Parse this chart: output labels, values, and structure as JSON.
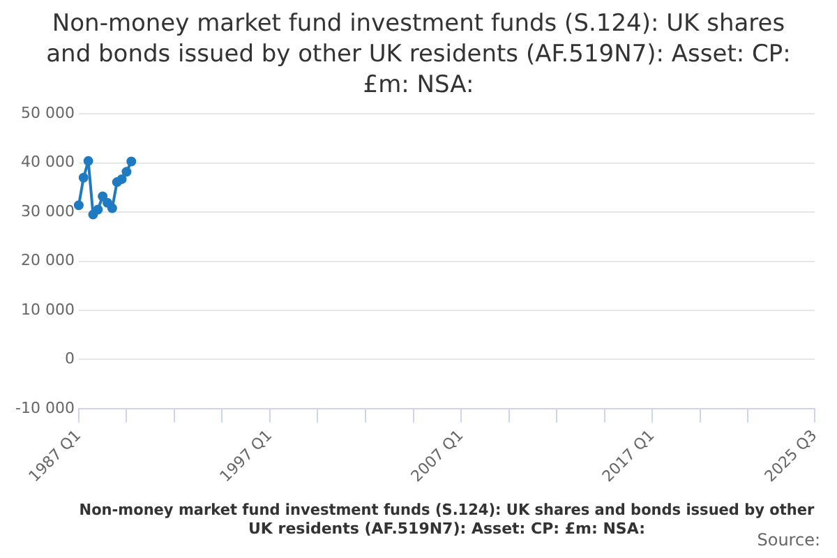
{
  "chart_data": {
    "type": "line",
    "title": "Non-money market fund investment funds (S.124): UK shares and bonds issued by other UK residents (AF.519N7): Asset: CP: £m: NSA:",
    "xlabel": "Non-money market fund investment funds (S.124): UK shares and bonds issued by other UK residents (AF.519N7): Asset: CP: £m: NSA:",
    "annotations": [
      "Source:"
    ],
    "categories": [
      "1987 Q1",
      null,
      null,
      null,
      null,
      null,
      null,
      null,
      null,
      null,
      null,
      null,
      null,
      null,
      null,
      null,
      null,
      null,
      null,
      null,
      null,
      null,
      null,
      null,
      null,
      null,
      null,
      null,
      null,
      null,
      null,
      null,
      null,
      null,
      null,
      null,
      null,
      null,
      null,
      null,
      "1997 Q1",
      null,
      null,
      null,
      null,
      null,
      null,
      null,
      null,
      null,
      null,
      null,
      null,
      null,
      null,
      null,
      null,
      null,
      null,
      null,
      null,
      null,
      null,
      null,
      null,
      null,
      null,
      null,
      null,
      null,
      null,
      null,
      null,
      null,
      null,
      null,
      null,
      null,
      null,
      null,
      "2007 Q1",
      null,
      null,
      null,
      null,
      null,
      null,
      null,
      null,
      null,
      null,
      null,
      null,
      null,
      null,
      null,
      null,
      null,
      null,
      null,
      null,
      null,
      null,
      null,
      null,
      null,
      null,
      null,
      null,
      null,
      null,
      null,
      null,
      null,
      null,
      null,
      null,
      null,
      null,
      null,
      "2017 Q1",
      null,
      null,
      null,
      null,
      null,
      null,
      null,
      null,
      null,
      null,
      null,
      null,
      null,
      null,
      null,
      null,
      null,
      null,
      null,
      null,
      null,
      null,
      null,
      null,
      null,
      null,
      null,
      null,
      null,
      null,
      null,
      null,
      null,
      "2025 Q3"
    ],
    "series": [
      {
        "color": "#1f7bc1",
        "values": [
          31400,
          37000,
          40400,
          29500,
          30500,
          33200,
          31900,
          30800,
          36100,
          36700,
          38200,
          40300,
          null,
          null,
          null,
          null,
          null,
          null,
          null,
          null,
          null,
          null,
          null,
          null,
          null,
          null,
          null,
          null,
          null,
          null,
          null,
          null,
          null,
          null,
          null,
          null,
          null,
          null,
          null,
          null,
          null,
          null,
          null,
          null,
          null,
          null,
          null,
          null,
          null,
          null,
          null,
          null,
          null,
          null,
          null,
          null,
          null,
          null,
          null,
          null,
          null,
          null,
          null,
          null,
          null,
          null,
          null,
          null,
          null,
          null,
          null,
          null,
          null,
          null,
          null,
          null,
          null,
          null,
          null,
          null,
          null,
          null,
          null,
          null,
          null,
          null,
          null,
          null,
          null,
          null,
          null,
          null,
          null,
          null,
          null,
          null,
          null,
          null,
          null,
          null,
          null,
          null,
          null,
          null,
          null,
          null,
          null,
          null,
          null,
          null,
          null,
          null,
          null,
          null,
          null,
          null,
          null,
          null,
          null,
          null,
          null,
          null,
          null,
          null,
          null,
          null,
          null,
          null,
          null,
          null,
          null,
          null,
          null,
          null,
          null,
          null,
          null,
          null,
          null,
          null,
          null,
          null,
          null,
          null,
          null,
          null,
          null,
          null,
          null,
          null,
          null,
          null,
          null,
          null,
          null
        ]
      }
    ],
    "ylim": [
      -10000,
      50000
    ],
    "yticks": [
      {
        "value": -10000,
        "label": "-10 000"
      },
      0,
      {
        "value": 10000,
        "label": "10 000"
      },
      {
        "value": 20000,
        "label": "20 000"
      },
      {
        "value": 30000,
        "label": "30 000"
      },
      {
        "value": 40000,
        "label": "40 000"
      },
      {
        "value": 50000,
        "label": "50 000"
      }
    ],
    "grid": "y",
    "marker": "circle",
    "line_style": "solid"
  }
}
